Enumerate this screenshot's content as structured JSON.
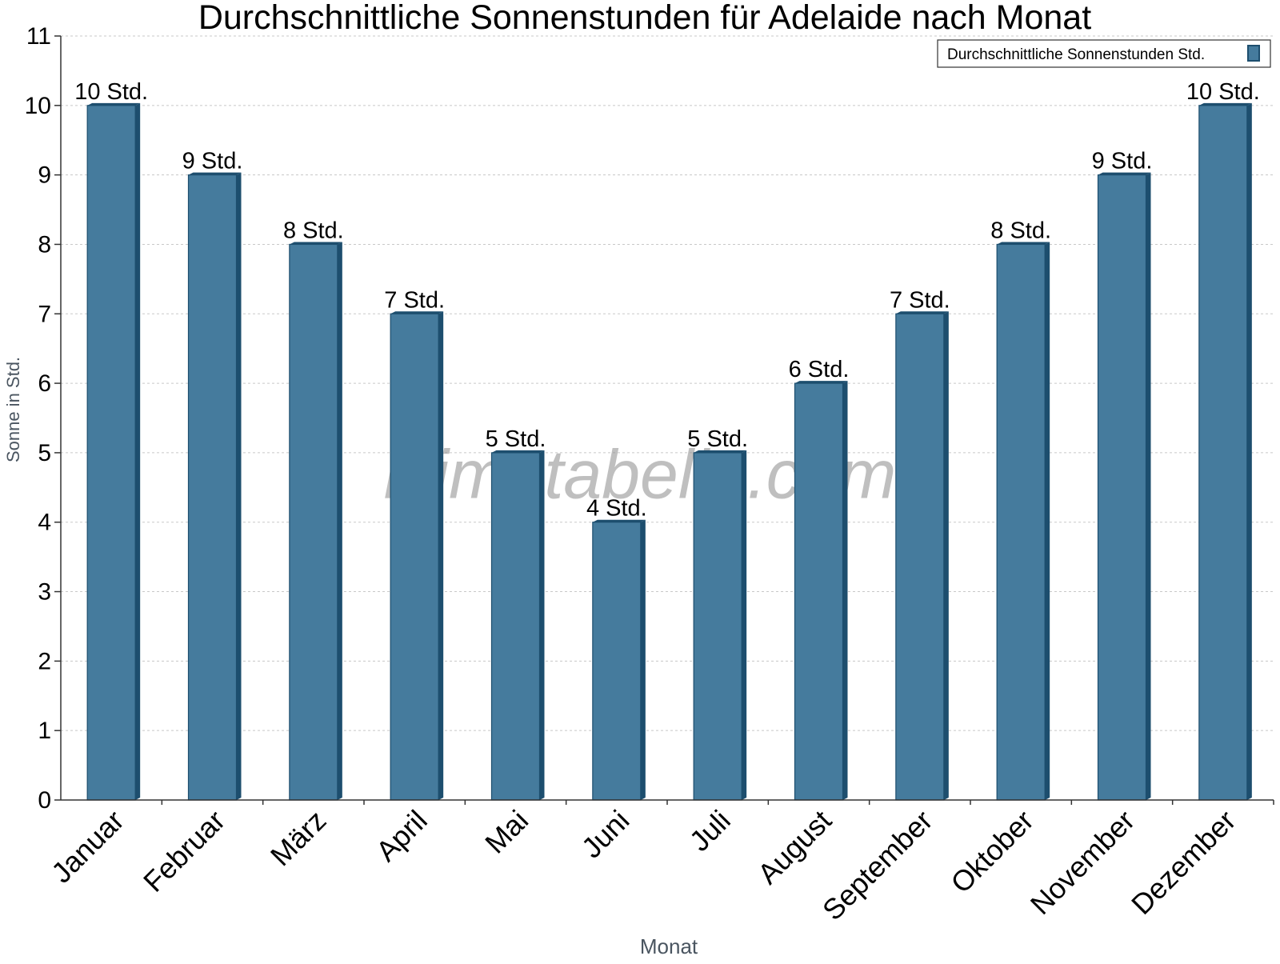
{
  "chart_data": {
    "type": "bar",
    "title": "Durchschnittliche Sonnenstunden für Adelaide nach Monat",
    "xlabel": "Monat",
    "ylabel": "Sonne in Std.",
    "ylim": [
      0,
      11
    ],
    "yticks": [
      "0",
      "1",
      "2",
      "3",
      "4",
      "5",
      "6",
      "7",
      "8",
      "9",
      "10",
      "11"
    ],
    "grid": true,
    "legend_position": "top-right",
    "categories": [
      "Januar",
      "Februar",
      "März",
      "April",
      "Mai",
      "Juni",
      "Juli",
      "August",
      "September",
      "Oktober",
      "November",
      "Dezember"
    ],
    "series": [
      {
        "name": "Durchschnittliche Sonnenstunden Std.",
        "values": [
          10,
          9,
          8,
          7,
          5,
          4,
          5,
          6,
          7,
          8,
          9,
          10
        ],
        "labels": [
          "10 Std.",
          "9 Std.",
          "8 Std.",
          "7 Std.",
          "5 Std.",
          "4 Std.",
          "5 Std.",
          "6 Std.",
          "7 Std.",
          "8 Std.",
          "9 Std.",
          "10 Std."
        ]
      }
    ],
    "watermark": "klimatabelle.com",
    "colors": {
      "bar": "#457B9D",
      "bar_side": "#1D4E6E",
      "bar_top": "#5E8FAF",
      "axis": "#333333",
      "grid": "#C8C8C8",
      "axis_title": "#4A5560"
    }
  }
}
